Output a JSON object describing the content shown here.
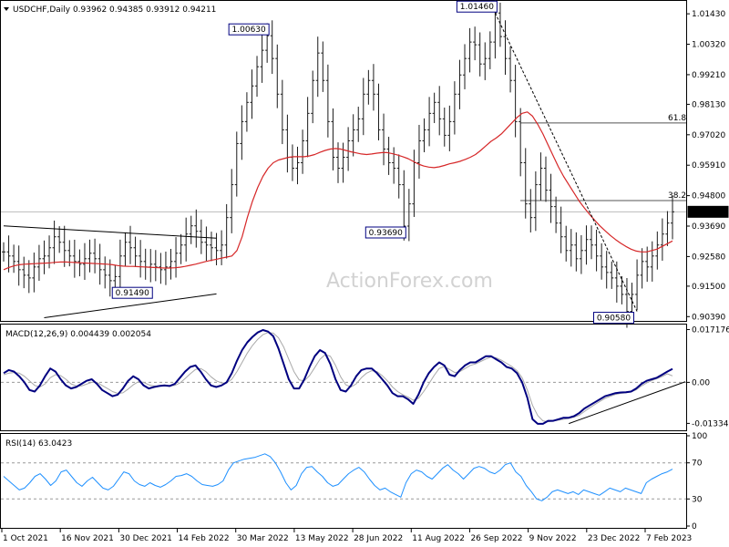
{
  "chart_data": {
    "type": "line",
    "instrument": "USDCHF",
    "timeframe": "Daily",
    "header": "USDCHF,Daily  0.93962 0.94385 0.93912 0.94211",
    "ohlc": {
      "open": 0.93962,
      "high": 0.94385,
      "low": 0.93912,
      "close": 0.94211
    },
    "watermark": "ActionForex.com",
    "colors": {
      "candles": "#1a1a1a",
      "ma": "#d62728",
      "macd": "#000080",
      "macd_signal": "#a9a9a9",
      "rsi": "#1e90ff",
      "trendline": "#000000"
    },
    "x_ticks": [
      "1 Oct 2021",
      "16 Nov 2021",
      "30 Dec 2021",
      "14 Feb 2022",
      "30 Mar 2022",
      "13 May 2022",
      "28 Jun 2022",
      "11 Aug 2022",
      "26 Sep 2022",
      "9 Nov 2022",
      "23 Dec 2022",
      "7 Feb 2023"
    ],
    "price": {
      "ylim": [
        0.903,
        1.018
      ],
      "y_ticks": [
        "1.01430",
        "1.00320",
        "0.99210",
        "0.98130",
        "0.97020",
        "0.95910",
        "0.94800",
        "0.93690",
        "0.92580",
        "0.91500",
        "0.90390"
      ],
      "y_tick_values": [
        1.0143,
        1.0032,
        0.9921,
        0.9813,
        0.9702,
        0.9591,
        0.948,
        0.9369,
        0.9258,
        0.915,
        0.9039
      ],
      "last_price_label": "0.94211",
      "last_price": 0.94211,
      "close_series": [
        0.9275,
        0.926,
        0.924,
        0.921,
        0.919,
        0.918,
        0.922,
        0.925,
        0.926,
        0.929,
        0.933,
        0.931,
        0.928,
        0.926,
        0.924,
        0.923,
        0.925,
        0.927,
        0.925,
        0.921,
        0.919,
        0.917,
        0.9185,
        0.926,
        0.931,
        0.929,
        0.926,
        0.924,
        0.922,
        0.923,
        0.922,
        0.921,
        0.922,
        0.924,
        0.927,
        0.93,
        0.934,
        0.937,
        0.935,
        0.931,
        0.93,
        0.929,
        0.928,
        0.93,
        0.94,
        0.952,
        0.967,
        0.975,
        0.982,
        0.988,
        0.995,
        1.001,
        1.0063,
        0.998,
        0.985,
        0.972,
        0.962,
        0.958,
        0.96,
        0.968,
        0.978,
        0.99,
        1.0,
        0.99,
        0.975,
        0.962,
        0.958,
        0.962,
        0.968,
        0.972,
        0.976,
        0.985,
        0.99,
        0.985,
        0.972,
        0.965,
        0.96,
        0.958,
        0.952,
        0.9369,
        0.945,
        0.96,
        0.968,
        0.972,
        0.978,
        0.982,
        0.976,
        0.97,
        0.975,
        0.985,
        0.992,
        0.998,
        1.004,
        1.003,
        0.996,
        0.998,
        1.004,
        1.0146,
        1.006,
        0.998,
        0.99,
        0.975,
        0.96,
        0.945,
        0.94,
        0.952,
        0.958,
        0.95,
        0.944,
        0.938,
        0.933,
        0.928,
        0.93,
        0.925,
        0.928,
        0.932,
        0.93,
        0.926,
        0.922,
        0.92,
        0.918,
        0.915,
        0.912,
        0.9058,
        0.912,
        0.919,
        0.924,
        0.922,
        0.926,
        0.93,
        0.934,
        0.938,
        0.9421
      ],
      "ma_series": [
        0.921,
        0.9218,
        0.9224,
        0.9228,
        0.923,
        0.9231,
        0.9232,
        0.9233,
        0.9234,
        0.9235,
        0.9237,
        0.9238,
        0.9238,
        0.9237,
        0.9236,
        0.9235,
        0.9234,
        0.9233,
        0.9232,
        0.9231,
        0.923,
        0.9228,
        0.9225,
        0.9223,
        0.9222,
        0.9222,
        0.9221,
        0.922,
        0.9219,
        0.9218,
        0.9217,
        0.9216,
        0.9216,
        0.9217,
        0.9219,
        0.9222,
        0.9226,
        0.923,
        0.9235,
        0.924,
        0.9244,
        0.9248,
        0.9252,
        0.9256,
        0.926,
        0.928,
        0.933,
        0.94,
        0.946,
        0.951,
        0.955,
        0.958,
        0.96,
        0.961,
        0.9615,
        0.962,
        0.9622,
        0.9622,
        0.9622,
        0.9625,
        0.963,
        0.9638,
        0.9645,
        0.965,
        0.9652,
        0.965,
        0.9645,
        0.964,
        0.9636,
        0.9632,
        0.963,
        0.9632,
        0.9635,
        0.9637,
        0.9637,
        0.9633,
        0.9628,
        0.9622,
        0.9615,
        0.9605,
        0.9595,
        0.9588,
        0.9584,
        0.9582,
        0.9585,
        0.959,
        0.9596,
        0.96,
        0.9605,
        0.9612,
        0.962,
        0.963,
        0.9645,
        0.9662,
        0.9678,
        0.969,
        0.9705,
        0.9725,
        0.9745,
        0.9765,
        0.978,
        0.9785,
        0.977,
        0.974,
        0.9705,
        0.9665,
        0.9625,
        0.9585,
        0.955,
        0.952,
        0.949,
        0.946,
        0.9435,
        0.9412,
        0.939,
        0.937,
        0.9352,
        0.9335,
        0.932,
        0.9307,
        0.9295,
        0.9285,
        0.9278,
        0.9275,
        0.9275,
        0.928,
        0.9285,
        0.9295,
        0.9305,
        0.9315
      ],
      "annotations": [
        {
          "text": "1.00630",
          "value": 1.0063
        },
        {
          "text": "1.01460",
          "value": 1.0146
        },
        {
          "text": "0.93690",
          "value": 0.9369
        },
        {
          "text": "0.91490",
          "value": 0.9149
        },
        {
          "text": "0.90580",
          "value": 0.9058
        }
      ],
      "fib_levels": [
        {
          "label": "61.8",
          "value": 0.9745
        },
        {
          "label": "38.2",
          "value": 0.9462
        }
      ],
      "ref_line": 0.94211
    },
    "macd": {
      "label": "MACD(12,26,9) 0.004439 0.002054",
      "ylim": [
        -0.015,
        0.0182
      ],
      "y_ticks": [
        "0.017176",
        "0.00",
        "-0.01334"
      ],
      "y_tick_values": [
        0.017176,
        0.0,
        -0.01334
      ],
      "macd_series": [
        0.003,
        0.004,
        0.0035,
        0.002,
        0.0,
        -0.0025,
        -0.003,
        -0.001,
        0.002,
        0.0045,
        0.0035,
        0.001,
        -0.001,
        -0.002,
        -0.0015,
        -0.0005,
        0.0005,
        0.001,
        -0.0005,
        -0.0025,
        -0.0035,
        -0.0045,
        -0.004,
        -0.002,
        0.0005,
        0.002,
        0.001,
        -0.001,
        -0.002,
        -0.0015,
        -0.0012,
        -0.001,
        -0.0012,
        -0.0005,
        0.0015,
        0.0035,
        0.005,
        0.0055,
        0.0035,
        0.001,
        -0.001,
        -0.0015,
        -0.001,
        0.0,
        0.003,
        0.007,
        0.0105,
        0.013,
        0.0148,
        0.0162,
        0.017,
        0.0165,
        0.015,
        0.011,
        0.006,
        0.001,
        -0.002,
        -0.002,
        0.001,
        0.005,
        0.0085,
        0.0105,
        0.0095,
        0.006,
        0.001,
        -0.0025,
        -0.003,
        -0.001,
        0.002,
        0.004,
        0.0045,
        0.0045,
        0.003,
        0.001,
        -0.001,
        -0.0035,
        -0.0045,
        -0.0045,
        -0.0055,
        -0.007,
        -0.004,
        0.0,
        0.003,
        0.005,
        0.0065,
        0.0055,
        0.0025,
        0.002,
        0.004,
        0.0055,
        0.0065,
        0.0065,
        0.0075,
        0.0085,
        0.0085,
        0.0075,
        0.0065,
        0.005,
        0.0045,
        0.003,
        0.0,
        -0.005,
        -0.012,
        -0.0135,
        -0.0135,
        -0.0125,
        -0.0125,
        -0.012,
        -0.0115,
        -0.0115,
        -0.011,
        -0.01,
        -0.0085,
        -0.0075,
        -0.0065,
        -0.0055,
        -0.0045,
        -0.004,
        -0.0035,
        -0.0033,
        -0.0032,
        -0.003,
        -0.002,
        -0.0005,
        0.0005,
        0.001,
        0.0015,
        0.0025,
        0.0035,
        0.0044
      ],
      "signal_series": [
        0.0025,
        0.003,
        0.0032,
        0.003,
        0.002,
        0.0005,
        -0.001,
        -0.0015,
        -0.0005,
        0.0015,
        0.0025,
        0.0022,
        0.001,
        -0.0005,
        -0.0012,
        -0.0012,
        -0.0006,
        0.0,
        0.0,
        -0.001,
        -0.002,
        -0.003,
        -0.0036,
        -0.0034,
        -0.0022,
        -0.0008,
        0.0002,
        0.0,
        -0.0008,
        -0.0012,
        -0.0012,
        -0.0012,
        -0.0012,
        -0.001,
        -0.0002,
        0.0012,
        0.0028,
        0.0042,
        0.0045,
        0.0035,
        0.0018,
        0.0005,
        -0.0002,
        -0.0002,
        0.001,
        0.0035,
        0.0065,
        0.0095,
        0.012,
        0.014,
        0.0155,
        0.0162,
        0.016,
        0.0145,
        0.0115,
        0.0075,
        0.0035,
        0.0008,
        0.0005,
        0.0022,
        0.0048,
        0.0075,
        0.009,
        0.0085,
        0.0055,
        0.0018,
        -0.0008,
        -0.0015,
        -0.0005,
        0.0015,
        0.003,
        0.0038,
        0.0035,
        0.0022,
        0.0005,
        -0.0015,
        -0.003,
        -0.004,
        -0.0048,
        -0.0058,
        -0.0052,
        -0.003,
        -0.0005,
        0.0022,
        0.0045,
        0.0052,
        0.0042,
        0.0032,
        0.0035,
        0.0045,
        0.0055,
        0.006,
        0.0068,
        0.0076,
        0.0082,
        0.008,
        0.0072,
        0.0062,
        0.0052,
        0.0038,
        0.0015,
        -0.0025,
        -0.0075,
        -0.0108,
        -0.0125,
        -0.0128,
        -0.0126,
        -0.0123,
        -0.012,
        -0.0117,
        -0.0113,
        -0.0107,
        -0.0095,
        -0.0083,
        -0.0072,
        -0.0062,
        -0.0052,
        -0.0045,
        -0.0039,
        -0.0036,
        -0.0034,
        -0.0031,
        -0.0024,
        -0.0012,
        -0.0002,
        0.0006,
        0.0012,
        0.0019,
        0.0028,
        0.0021
      ],
      "zero_line": 0.0
    },
    "rsi": {
      "label": "RSI(14) 63.0423",
      "ylim": [
        0,
        100
      ],
      "y_ticks": [
        "100",
        "70",
        "30",
        "0"
      ],
      "y_tick_values": [
        100,
        70,
        30,
        0
      ],
      "overbought": 70,
      "oversold": 30,
      "series": [
        55,
        50,
        45,
        40,
        42,
        48,
        55,
        58,
        52,
        45,
        50,
        60,
        62,
        55,
        48,
        44,
        50,
        54,
        48,
        42,
        40,
        44,
        52,
        60,
        58,
        50,
        46,
        44,
        48,
        45,
        43,
        46,
        50,
        55,
        56,
        58,
        55,
        50,
        46,
        45,
        44,
        46,
        50,
        62,
        70,
        72,
        74,
        75,
        76,
        78,
        80,
        77,
        70,
        60,
        48,
        40,
        45,
        58,
        65,
        66,
        60,
        55,
        48,
        44,
        46,
        52,
        58,
        62,
        65,
        60,
        52,
        45,
        40,
        42,
        38,
        35,
        32,
        48,
        58,
        62,
        60,
        55,
        52,
        58,
        64,
        68,
        62,
        58,
        52,
        58,
        64,
        66,
        64,
        60,
        58,
        62,
        68,
        70,
        60,
        55,
        45,
        38,
        30,
        28,
        32,
        38,
        40,
        38,
        36,
        38,
        35,
        40,
        38,
        36,
        34,
        38,
        42,
        40,
        38,
        42,
        40,
        38,
        36,
        48,
        52,
        55,
        58,
        60,
        63
      ]
    }
  }
}
